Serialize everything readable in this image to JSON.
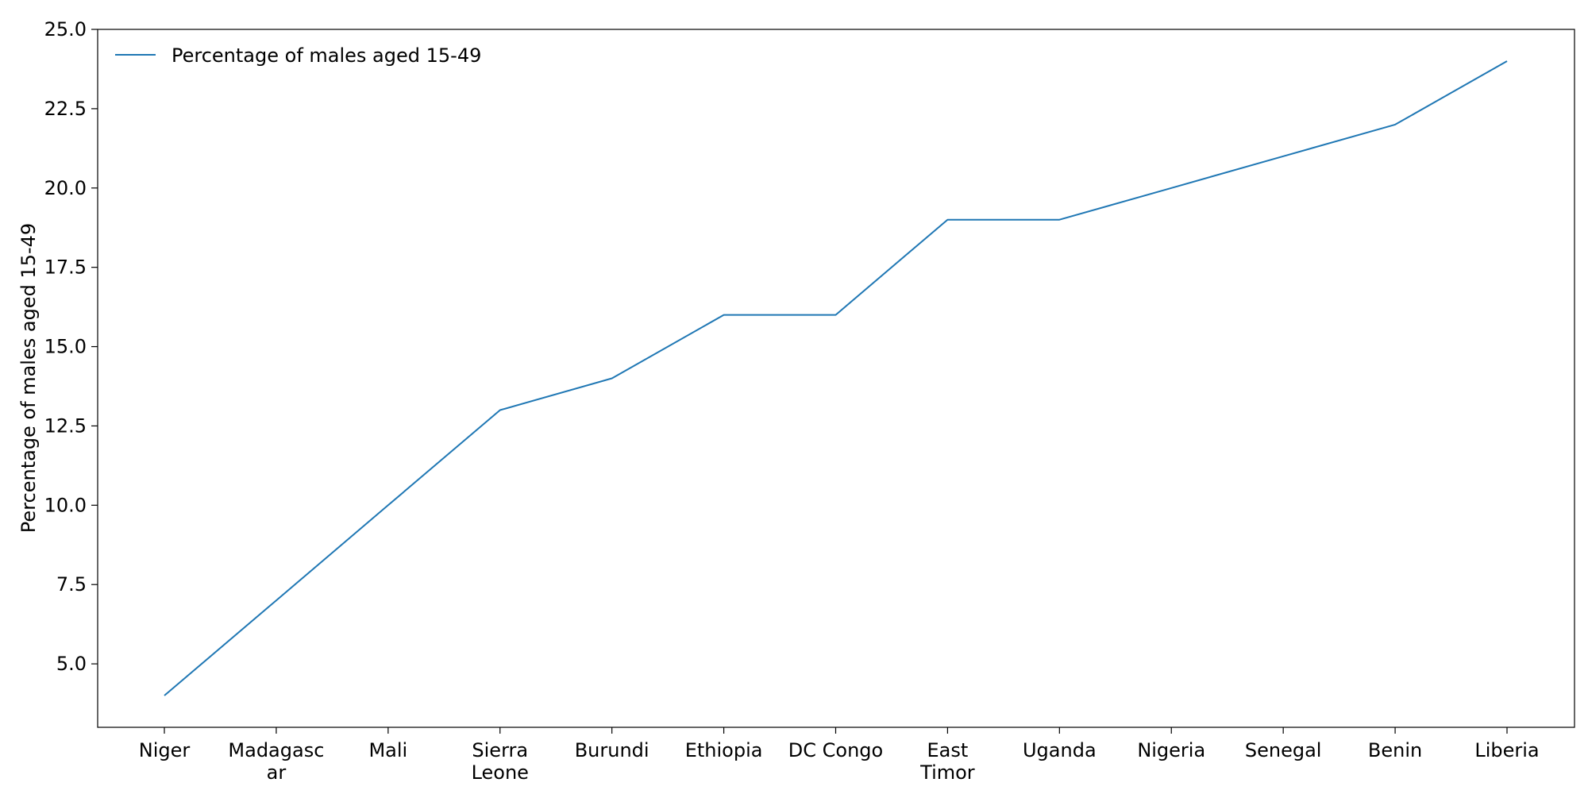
{
  "chart_data": {
    "type": "line",
    "categories": [
      "Niger",
      "Madagascar",
      "Mali",
      "Sierra Leone",
      "Burundi",
      "Ethiopia",
      "DC Congo",
      "East Timor",
      "Uganda",
      "Nigeria",
      "Senegal",
      "Benin",
      "Liberia"
    ],
    "category_display_lines": [
      [
        "Niger"
      ],
      [
        "Madagasc",
        "ar"
      ],
      [
        "Mali"
      ],
      [
        "Sierra",
        "Leone"
      ],
      [
        "Burundi"
      ],
      [
        "Ethiopia"
      ],
      [
        "DC Congo"
      ],
      [
        "East",
        "Timor"
      ],
      [
        "Uganda"
      ],
      [
        "Nigeria"
      ],
      [
        "Senegal"
      ],
      [
        "Benin"
      ],
      [
        "Liberia"
      ]
    ],
    "series": [
      {
        "name": "Percentage of males aged 15-49",
        "values": [
          4,
          7,
          10,
          13,
          14,
          16,
          16,
          19,
          19,
          20,
          21,
          22,
          24
        ],
        "color": "#1f77b4"
      }
    ],
    "title": "",
    "xlabel": "",
    "ylabel": "Percentage of males aged 15-49",
    "ylim": [
      3,
      25
    ],
    "yticks": [
      "5.0",
      "7.5",
      "10.0",
      "12.5",
      "15.0",
      "17.5",
      "20.0",
      "22.5",
      "25.0"
    ],
    "grid": false,
    "legend_position": "top-left"
  }
}
